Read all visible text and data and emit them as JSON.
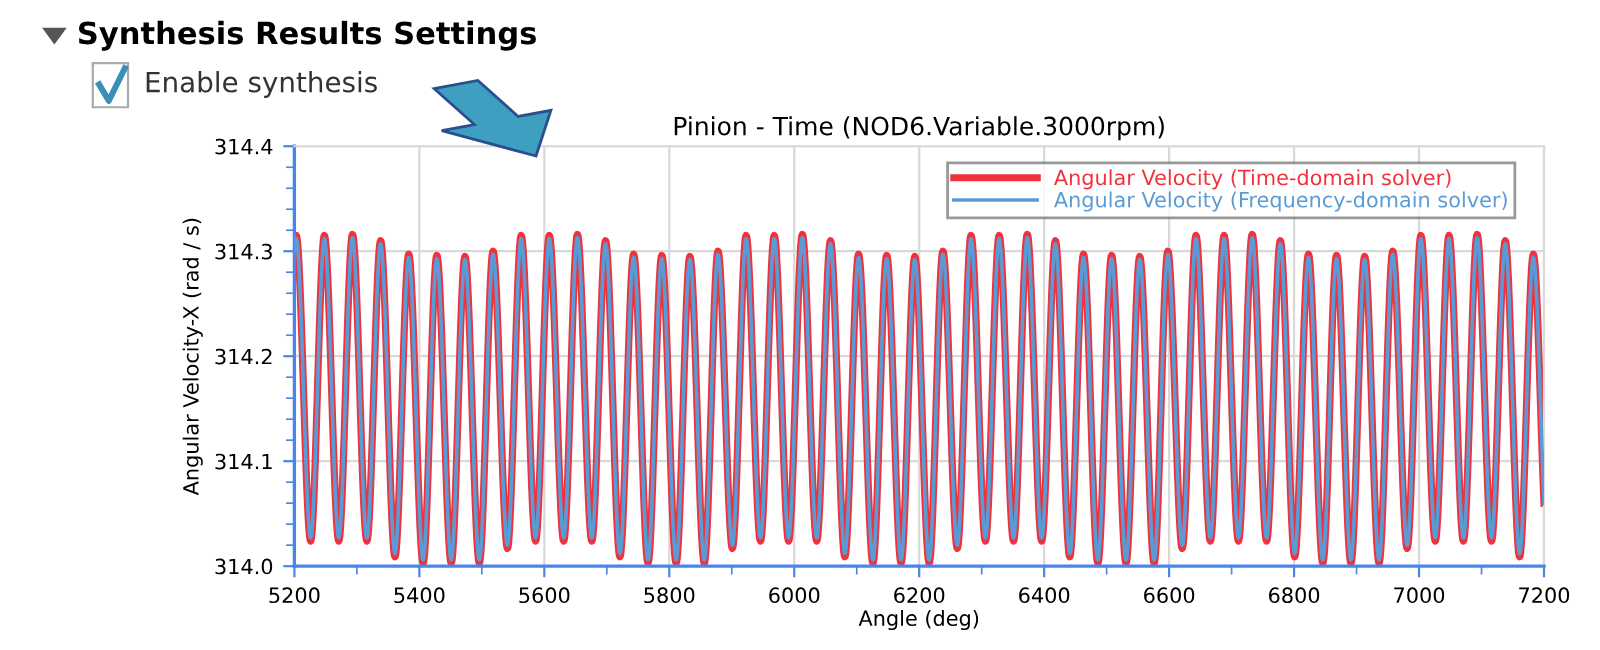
{
  "chart_data": {
    "type": "line",
    "title": "Pinion - Time (NOD6.Variable.3000rpm)",
    "xlabel": "Angle (deg)",
    "ylabel": "Angular Velocity-X (rad / s)",
    "annotations": [
      "Synthesis Results Settings",
      "Enable synthesis"
    ],
    "x": [
      5200,
      5203,
      5226,
      5248,
      5271,
      5293,
      5316,
      5338,
      5361,
      5383,
      5406,
      5428,
      5451,
      5473,
      5496,
      5518,
      5541,
      5563,
      5586,
      5608,
      5631,
      5653,
      5676,
      5698,
      5721,
      5743,
      5766,
      5788,
      5811,
      5833,
      5856,
      5878,
      5901,
      5923,
      5946,
      5968,
      5991,
      6013,
      6036,
      6058,
      6081,
      6103,
      6126,
      6148,
      6171,
      6193,
      6216,
      6238,
      6261,
      6283,
      6306,
      6328,
      6351,
      6373,
      6396,
      6418,
      6441,
      6463,
      6486,
      6508,
      6531,
      6553,
      6576,
      6598,
      6621,
      6643,
      6666,
      6688,
      6711,
      6733,
      6756,
      6778,
      6801,
      6823,
      6846,
      6868,
      6891,
      6913,
      6936,
      6958,
      6981,
      7003,
      7026,
      7048,
      7071,
      7093,
      7116,
      7138,
      7161,
      7183,
      7200
    ],
    "series": [
      {
        "name": "Angular Velocity (Time-domain solver)",
        "color": "#f0323c",
        "values": [
          314.3,
          314.315,
          314.024,
          314.315,
          314.024,
          314.316,
          314.024,
          314.31,
          314.009,
          314.297,
          314.003,
          314.296,
          314.003,
          314.295,
          314.003,
          314.3,
          314.017,
          314.315,
          314.024,
          314.315,
          314.024,
          314.316,
          314.024,
          314.31,
          314.009,
          314.297,
          314.003,
          314.296,
          314.003,
          314.295,
          314.003,
          314.3,
          314.017,
          314.315,
          314.024,
          314.315,
          314.024,
          314.316,
          314.024,
          314.31,
          314.009,
          314.297,
          314.003,
          314.296,
          314.003,
          314.295,
          314.003,
          314.3,
          314.017,
          314.315,
          314.024,
          314.315,
          314.024,
          314.316,
          314.024,
          314.31,
          314.009,
          314.297,
          314.003,
          314.296,
          314.003,
          314.295,
          314.003,
          314.3,
          314.017,
          314.315,
          314.024,
          314.315,
          314.024,
          314.316,
          314.024,
          314.31,
          314.009,
          314.297,
          314.003,
          314.296,
          314.003,
          314.295,
          314.003,
          314.3,
          314.017,
          314.315,
          314.024,
          314.315,
          314.024,
          314.316,
          314.024,
          314.31,
          314.009,
          314.297,
          314.06
        ]
      },
      {
        "name": "Angular Velocity (Frequency-domain solver)",
        "color": "#5b9bd5",
        "values": [
          314.3,
          314.312,
          314.027,
          314.312,
          314.027,
          314.313,
          314.027,
          314.307,
          314.012,
          314.294,
          314.006,
          314.293,
          314.006,
          314.292,
          314.006,
          314.297,
          314.02,
          314.312,
          314.027,
          314.312,
          314.027,
          314.313,
          314.027,
          314.307,
          314.012,
          314.294,
          314.006,
          314.293,
          314.006,
          314.292,
          314.006,
          314.297,
          314.02,
          314.312,
          314.027,
          314.312,
          314.027,
          314.313,
          314.027,
          314.307,
          314.012,
          314.294,
          314.006,
          314.293,
          314.006,
          314.292,
          314.006,
          314.297,
          314.02,
          314.312,
          314.027,
          314.312,
          314.027,
          314.313,
          314.027,
          314.307,
          314.012,
          314.294,
          314.006,
          314.293,
          314.006,
          314.292,
          314.006,
          314.297,
          314.02,
          314.312,
          314.027,
          314.312,
          314.027,
          314.313,
          314.027,
          314.307,
          314.012,
          314.294,
          314.006,
          314.293,
          314.006,
          314.292,
          314.006,
          314.297,
          314.02,
          314.312,
          314.027,
          314.312,
          314.027,
          314.313,
          314.027,
          314.307,
          314.012,
          314.294,
          314.06
        ]
      }
    ],
    "xlim": [
      5200,
      7200
    ],
    "xticks": [
      5200,
      5400,
      5600,
      5800,
      6000,
      6200,
      6400,
      6600,
      6800,
      7000,
      7200
    ],
    "ylim": [
      314.0,
      314.4
    ],
    "yticks": [
      {
        "value": 314.0,
        "label": "314.0"
      },
      314.1,
      314.2,
      314.3,
      314.4
    ],
    "grid": true,
    "legend": "top right",
    "marker": "none",
    "line_style": "solid"
  }
}
